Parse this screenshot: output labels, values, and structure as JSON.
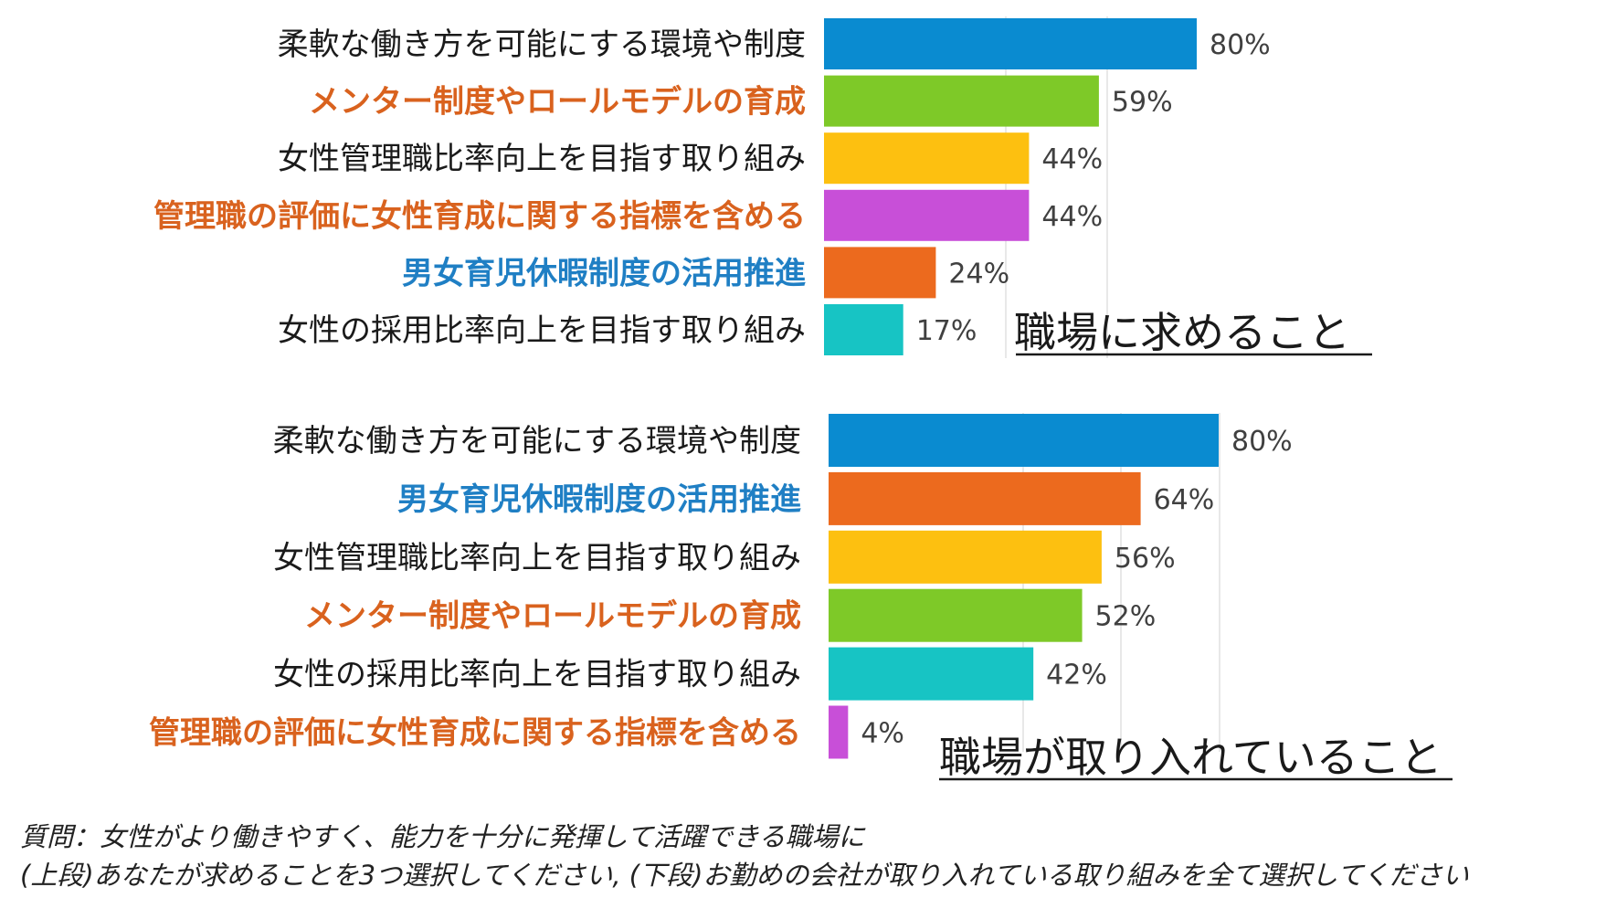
{
  "colors": {
    "black": "#1a1a1a",
    "orange_text": "#d9621e",
    "blue_text": "#1f7fc4",
    "grid": "#d9d9d9",
    "value_text": "#404040"
  },
  "chart_data": [
    {
      "type": "bar",
      "orientation": "horizontal",
      "title": "職場に求めること",
      "xlim": [
        0,
        100
      ],
      "categories": [
        "柔軟な働き方を可能にする環境や制度",
        "メンター制度やロールモデルの育成",
        "女性管理職比率向上を目指す取り組み",
        "管理職の評価に女性育成に関する指標を含める",
        "男女育児休暇制度の活用推進",
        "女性の採用比率向上を目指す取り組み"
      ],
      "values": [
        80,
        59,
        44,
        44,
        24,
        17
      ],
      "value_labels": [
        "80%",
        "59%",
        "44%",
        "44%",
        "24%",
        "17%"
      ],
      "bar_colors": [
        "#0a8bd0",
        "#7ec928",
        "#fdc010",
        "#c84fd8",
        "#ec6a1e",
        "#17c4c4"
      ],
      "label_colors": [
        "black",
        "orange",
        "black",
        "orange",
        "blue",
        "black"
      ]
    },
    {
      "type": "bar",
      "orientation": "horizontal",
      "title": "職場が取り入れていること",
      "xlim": [
        0,
        100
      ],
      "categories": [
        "柔軟な働き方を可能にする環境や制度",
        "男女育児休暇制度の活用推進",
        "女性管理職比率向上を目指す取り組み",
        "メンター制度やロールモデルの育成",
        "女性の採用比率向上を目指す取り組み",
        "管理職の評価に女性育成に関する指標を含める"
      ],
      "values": [
        80,
        64,
        56,
        52,
        42,
        4
      ],
      "value_labels": [
        "80%",
        "64%",
        "56%",
        "52%",
        "42%",
        "4%"
      ],
      "bar_colors": [
        "#0a8bd0",
        "#ec6a1e",
        "#fdc010",
        "#7ec928",
        "#17c4c4",
        "#c84fd8"
      ],
      "label_colors": [
        "black",
        "blue",
        "black",
        "orange",
        "black",
        "orange"
      ]
    }
  ],
  "footnote": {
    "line1": "質問：女性がより働きやすく、能力を十分に発揮して活躍できる職場に",
    "line2": "(上段)あなたが求めることを3つ選択してください, (下段)お勤めの会社が取り入れている取り組みを全て選択してください"
  }
}
